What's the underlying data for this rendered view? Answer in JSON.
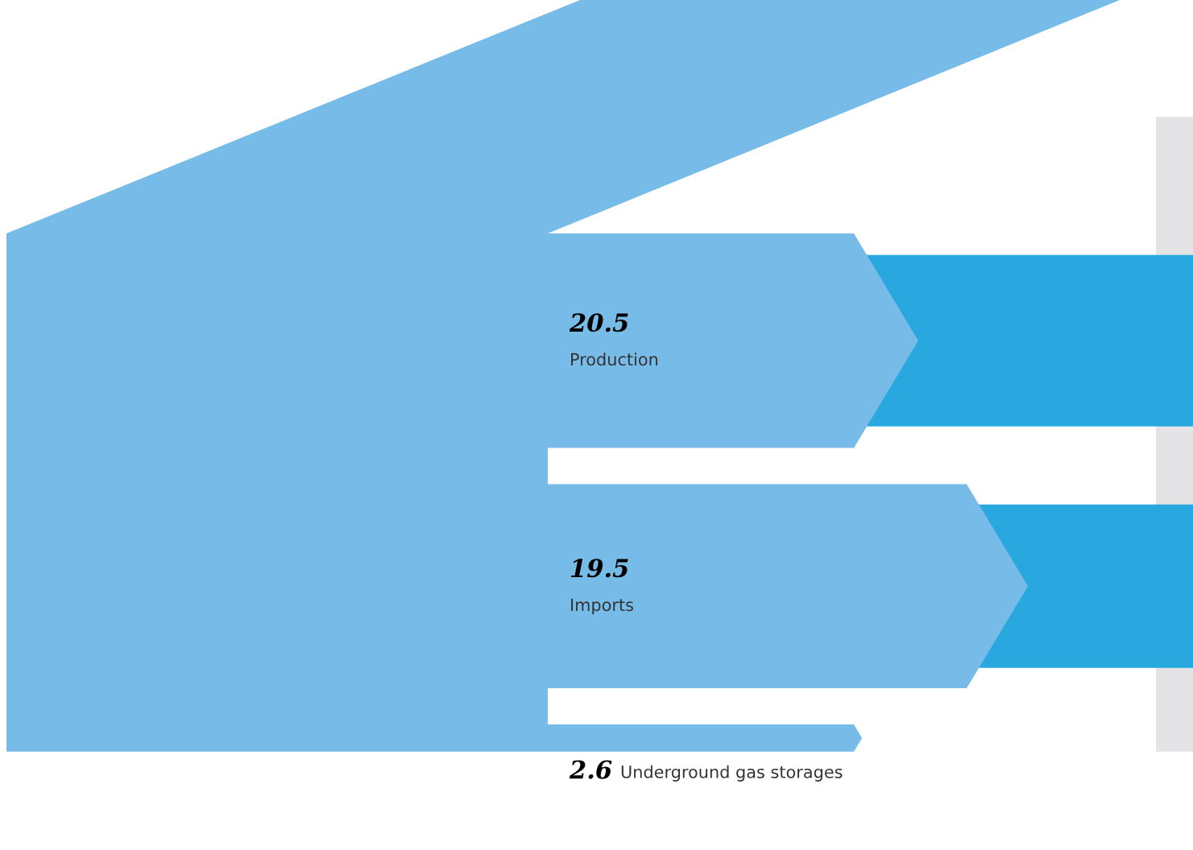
{
  "chart_data": {
    "type": "other",
    "categories": [
      "Production",
      "Imports",
      "Underground gas storages"
    ],
    "values": [
      20.5,
      19.5,
      2.6
    ],
    "colors": [
      "#77bce8",
      "#77bce8",
      "#77bce8"
    ],
    "data_labels": true
  }
}
